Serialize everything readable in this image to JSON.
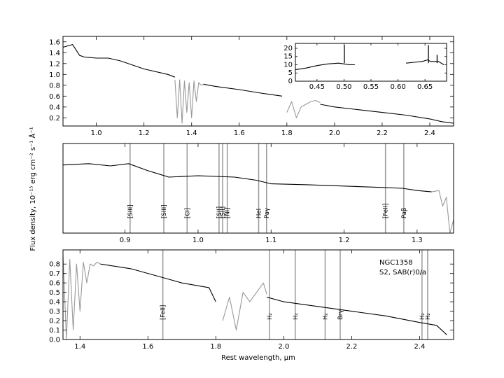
{
  "figure": {
    "ylabel": "Flux density, 10$^{-15}$ erg cm$^{-2}$ s$^{-1}$ Å$^{-1}$",
    "ylabel_display": "Flux density, 10⁻¹⁵  erg  cm⁻²  s⁻¹  Å⁻¹",
    "xlabel": "Rest wavelength, μm",
    "annotation": [
      "NGC1358",
      "S2,  SAB(r)0/a"
    ]
  },
  "chart_data": [
    {
      "type": "line",
      "panel": "top",
      "xlim": [
        0.86,
        2.5
      ],
      "ylim": [
        0.05,
        1.7
      ],
      "xticks": [
        "1.0",
        "1.2",
        "1.4",
        "1.6",
        "1.8",
        "2.0",
        "2.2",
        "2.4"
      ],
      "yticks": [
        "0.2",
        "0.4",
        "0.6",
        "0.8",
        "1.0",
        "1.2",
        "1.4",
        "1.6"
      ],
      "series": [
        {
          "color": "black",
          "x": [
            0.86,
            0.9,
            0.93,
            0.95,
            1.0,
            1.05,
            1.1,
            1.2,
            1.3,
            1.33
          ],
          "y": [
            1.5,
            1.55,
            1.35,
            1.32,
            1.3,
            1.3,
            1.25,
            1.1,
            1.0,
            0.95
          ]
        },
        {
          "color": "gray",
          "x": [
            1.33,
            1.34,
            1.35,
            1.36,
            1.37,
            1.38,
            1.39,
            1.4,
            1.41,
            1.42,
            1.43,
            1.44,
            1.45
          ],
          "y": [
            0.9,
            0.2,
            0.9,
            0.1,
            0.88,
            0.3,
            0.85,
            0.2,
            0.88,
            0.5,
            0.85,
            0.8,
            0.82
          ]
        },
        {
          "color": "black",
          "x": [
            1.45,
            1.5,
            1.6,
            1.7,
            1.78
          ],
          "y": [
            0.82,
            0.78,
            0.72,
            0.65,
            0.6
          ]
        },
        {
          "color": "gray",
          "x": [
            1.8,
            1.82,
            1.84,
            1.86,
            1.88,
            1.9,
            1.92,
            1.94
          ],
          "y": [
            0.3,
            0.5,
            0.2,
            0.4,
            0.45,
            0.5,
            0.52,
            0.48
          ]
        },
        {
          "color": "black",
          "x": [
            1.94,
            2.0,
            2.1,
            2.2,
            2.3,
            2.4,
            2.45,
            2.5
          ],
          "y": [
            0.45,
            0.4,
            0.35,
            0.3,
            0.25,
            0.18,
            0.13,
            0.1
          ]
        }
      ]
    },
    {
      "type": "line",
      "panel": "inset",
      "xlim": [
        0.41,
        0.69
      ],
      "ylim": [
        0,
        23
      ],
      "xticks": [
        "0.45",
        "0.50",
        "0.55",
        "0.60",
        "0.65"
      ],
      "yticks": [
        "0",
        "5",
        "10",
        "15",
        "20"
      ],
      "series": [
        {
          "color": "black",
          "x": [
            0.41,
            0.43,
            0.45,
            0.47,
            0.49,
            0.5,
            0.51,
            0.52
          ],
          "y": [
            7,
            8,
            9.5,
            10.5,
            11,
            10.5,
            10,
            10
          ]
        },
        {
          "color": "black",
          "x": [
            0.615,
            0.63,
            0.645,
            0.655,
            0.66,
            0.675,
            0.685
          ],
          "y": [
            11,
            11.5,
            12,
            13,
            12,
            12,
            10
          ]
        }
      ],
      "peaks": [
        {
          "x": 0.5007,
          "y": 22
        },
        {
          "x": 0.6563,
          "y": 22
        },
        {
          "x": 0.6724,
          "y": 16
        }
      ]
    },
    {
      "type": "line",
      "panel": "middle",
      "xlim": [
        0.815,
        1.35
      ],
      "ylim": [
        0.0,
        2.0
      ],
      "xticks": [
        "0.9",
        "1.0",
        "1.1",
        "1.2",
        "1.3"
      ],
      "series": [
        {
          "color": "black",
          "x": [
            0.815,
            0.85,
            0.88,
            0.905,
            0.93,
            0.95,
            0.96,
            1.0,
            1.05,
            1.08,
            1.1,
            1.15,
            1.2,
            1.25,
            1.28,
            1.3,
            1.32
          ],
          "y": [
            1.52,
            1.55,
            1.5,
            1.55,
            1.4,
            1.3,
            1.25,
            1.28,
            1.25,
            1.18,
            1.1,
            1.08,
            1.05,
            1.02,
            1.0,
            0.95,
            0.92
          ]
        },
        {
          "color": "gray",
          "x": [
            1.32,
            1.33,
            1.335,
            1.34,
            1.345,
            1.35
          ],
          "y": [
            0.92,
            0.95,
            0.6,
            0.8,
            0.0,
            0.3
          ]
        }
      ],
      "lines": [
        {
          "label": "[SIII]",
          "x": 0.9069
        },
        {
          "label": "[SIII]",
          "x": 0.9531
        },
        {
          "label": "[CI]",
          "x": 0.985
        },
        {
          "label": "[SII]",
          "x": 1.0287
        },
        {
          "label": "[SII]",
          "x": 1.0336
        },
        {
          "label": "[NI]",
          "x": 1.04
        },
        {
          "label": "HeI",
          "x": 1.083
        },
        {
          "label": "Paγ",
          "x": 1.0938
        },
        {
          "label": "[FeII]",
          "x": 1.2567
        },
        {
          "label": "Paβ",
          "x": 1.2818
        }
      ]
    },
    {
      "type": "line",
      "panel": "bottom",
      "xlim": [
        1.35,
        2.5
      ],
      "ylim": [
        0.0,
        0.95
      ],
      "xticks": [
        "1.4",
        "1.6",
        "1.8",
        "2.0",
        "2.2",
        "2.4"
      ],
      "yticks": [
        "0.0",
        "0.1",
        "0.2",
        "0.3",
        "0.4",
        "0.5",
        "0.6",
        "0.7",
        "0.8"
      ],
      "series": [
        {
          "color": "gray",
          "x": [
            1.35,
            1.36,
            1.37,
            1.38,
            1.39,
            1.4,
            1.41,
            1.42,
            1.43,
            1.44,
            1.45,
            1.46
          ],
          "y": [
            0.9,
            0.0,
            0.85,
            0.1,
            0.8,
            0.3,
            0.82,
            0.6,
            0.8,
            0.78,
            0.82,
            0.8
          ]
        },
        {
          "color": "black",
          "x": [
            1.46,
            1.55,
            1.65,
            1.7,
            1.78,
            1.8
          ],
          "y": [
            0.8,
            0.75,
            0.65,
            0.6,
            0.55,
            0.4
          ]
        },
        {
          "color": "gray",
          "x": [
            1.82,
            1.84,
            1.86,
            1.88,
            1.9,
            1.92,
            1.94,
            1.95
          ],
          "y": [
            0.2,
            0.45,
            0.1,
            0.5,
            0.4,
            0.5,
            0.6,
            0.48
          ]
        },
        {
          "color": "black",
          "x": [
            1.95,
            2.0,
            2.1,
            2.2,
            2.3,
            2.4,
            2.45,
            2.48
          ],
          "y": [
            0.45,
            0.4,
            0.35,
            0.3,
            0.25,
            0.18,
            0.15,
            0.05
          ]
        }
      ],
      "lines": [
        {
          "label": "[FeII]",
          "x": 1.644
        },
        {
          "label": "H₂",
          "x": 1.9576
        },
        {
          "label": "H₂",
          "x": 2.0338
        },
        {
          "label": "H₂",
          "x": 2.1218
        },
        {
          "label": "Brγ",
          "x": 2.1661
        },
        {
          "label": "H₂",
          "x": 2.407
        },
        {
          "label": "H₂",
          "x": 2.4237
        }
      ]
    }
  ]
}
